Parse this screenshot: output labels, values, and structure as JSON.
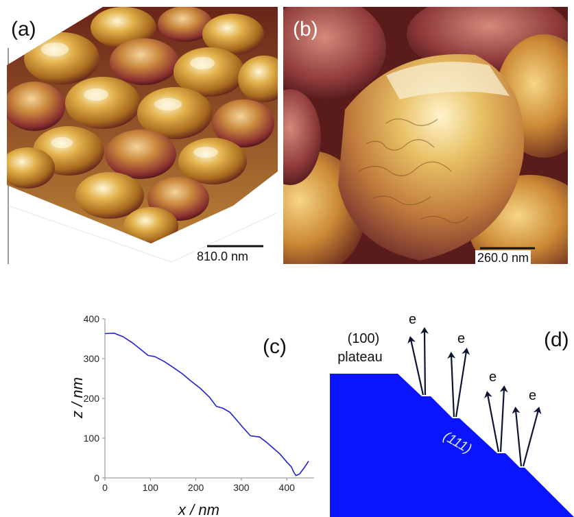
{
  "panels": {
    "a": {
      "label": "(a)",
      "scale_bar": "810.0 nm"
    },
    "b": {
      "label": "(b)",
      "scale_bar": "260.0 nm"
    },
    "c": {
      "label": "(c)"
    },
    "d": {
      "label": "(d)",
      "plateau_label_line1": "(100)",
      "plateau_label_line2": "plateau",
      "facet_label": "(111)",
      "electron_label": "e"
    }
  },
  "chart_data": {
    "type": "line",
    "xlabel": "x / nm",
    "ylabel": "z / nm",
    "xlim": [
      0,
      460
    ],
    "ylim": [
      0,
      400
    ],
    "x_ticks": [
      0,
      100,
      200,
      300,
      400
    ],
    "y_ticks": [
      0,
      100,
      200,
      300,
      400
    ],
    "grid": false,
    "series": [
      {
        "color": "#1f1fd6",
        "points": [
          [
            0,
            363
          ],
          [
            20,
            364
          ],
          [
            40,
            355
          ],
          [
            60,
            340
          ],
          [
            80,
            322
          ],
          [
            95,
            308
          ],
          [
            110,
            305
          ],
          [
            130,
            293
          ],
          [
            150,
            278
          ],
          [
            170,
            262
          ],
          [
            190,
            243
          ],
          [
            210,
            225
          ],
          [
            230,
            203
          ],
          [
            245,
            180
          ],
          [
            260,
            175
          ],
          [
            275,
            165
          ],
          [
            290,
            145
          ],
          [
            305,
            125
          ],
          [
            320,
            106
          ],
          [
            340,
            103
          ],
          [
            355,
            90
          ],
          [
            370,
            75
          ],
          [
            385,
            60
          ],
          [
            400,
            40
          ],
          [
            410,
            28
          ],
          [
            415,
            15
          ],
          [
            420,
            6
          ],
          [
            428,
            10
          ],
          [
            438,
            25
          ],
          [
            448,
            42
          ]
        ]
      }
    ]
  }
}
